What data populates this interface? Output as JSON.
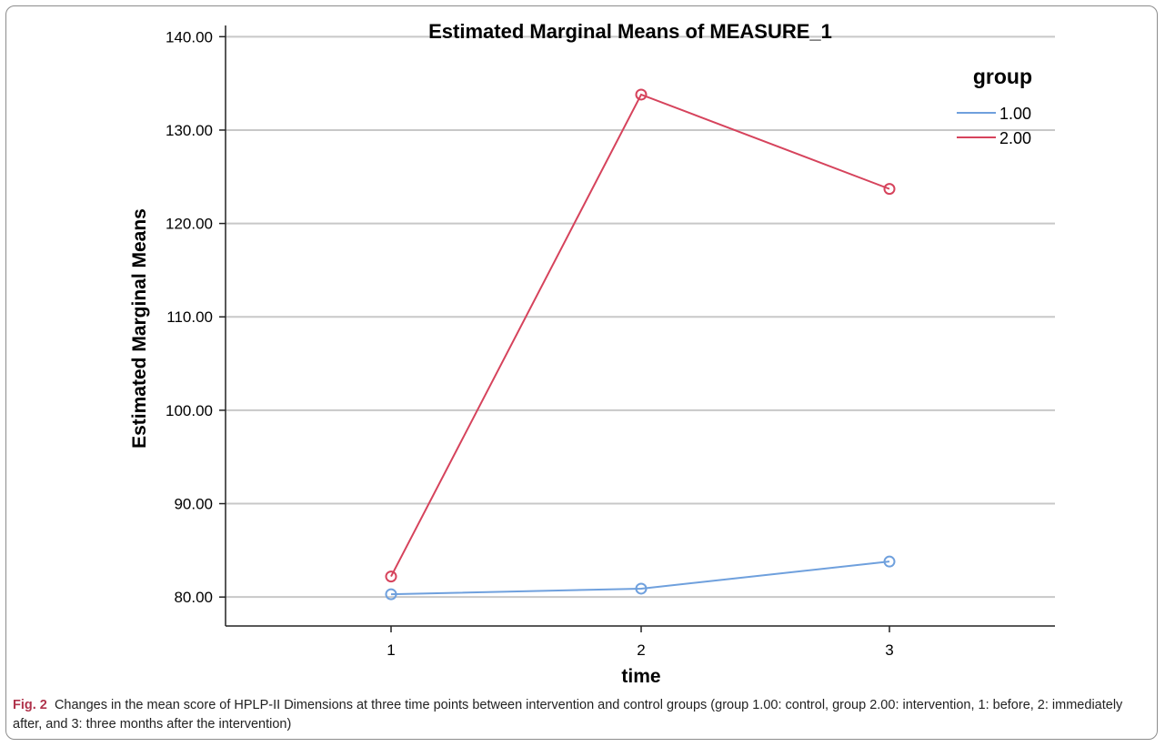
{
  "chart_data": {
    "type": "line",
    "title": "Estimated Marginal Means of MEASURE_1",
    "xlabel": "time",
    "ylabel": "Estimated Marginal Means",
    "categories": [
      "1",
      "2",
      "3"
    ],
    "y_ticks": [
      "80.00",
      "90.00",
      "100.00",
      "110.00",
      "120.00",
      "130.00",
      "140.00"
    ],
    "ylim": [
      76.9,
      141.2
    ],
    "grid": "horizontal",
    "legend": {
      "title": "group",
      "position": "top-right"
    },
    "series": [
      {
        "name": "1.00",
        "color": "#6fa0dd",
        "values": [
          80.3,
          80.9,
          83.8
        ]
      },
      {
        "name": "2.00",
        "color": "#d6435c",
        "values": [
          82.2,
          133.8,
          123.7
        ]
      }
    ]
  },
  "caption": {
    "lead": "Fig. 2",
    "text": "Changes in the mean score of HPLP-II Dimensions at three time points between intervention and control groups (group 1.00: control, group 2.00: intervention, 1: before, 2: immediately after, and 3: three months after the intervention)"
  }
}
